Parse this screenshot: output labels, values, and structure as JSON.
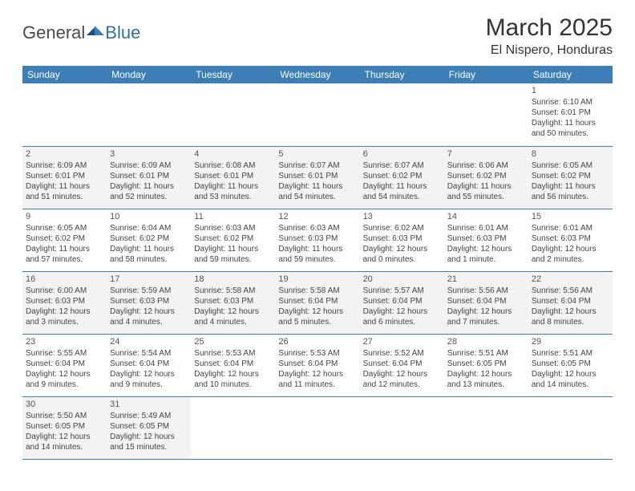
{
  "brand": {
    "part1": "General",
    "part2": "Blue"
  },
  "title": "March 2025",
  "location": "El Nispero, Honduras",
  "header_bg": "#3b7fb6",
  "days": [
    "Sunday",
    "Monday",
    "Tuesday",
    "Wednesday",
    "Thursday",
    "Friday",
    "Saturday"
  ],
  "weeks": [
    [
      null,
      null,
      null,
      null,
      null,
      null,
      {
        "n": "1",
        "sr": "Sunrise: 6:10 AM",
        "ss": "Sunset: 6:01 PM",
        "dl": "Daylight: 11 hours and 50 minutes."
      }
    ],
    [
      {
        "n": "2",
        "sr": "Sunrise: 6:09 AM",
        "ss": "Sunset: 6:01 PM",
        "dl": "Daylight: 11 hours and 51 minutes."
      },
      {
        "n": "3",
        "sr": "Sunrise: 6:09 AM",
        "ss": "Sunset: 6:01 PM",
        "dl": "Daylight: 11 hours and 52 minutes."
      },
      {
        "n": "4",
        "sr": "Sunrise: 6:08 AM",
        "ss": "Sunset: 6:01 PM",
        "dl": "Daylight: 11 hours and 53 minutes."
      },
      {
        "n": "5",
        "sr": "Sunrise: 6:07 AM",
        "ss": "Sunset: 6:01 PM",
        "dl": "Daylight: 11 hours and 54 minutes."
      },
      {
        "n": "6",
        "sr": "Sunrise: 6:07 AM",
        "ss": "Sunset: 6:02 PM",
        "dl": "Daylight: 11 hours and 54 minutes."
      },
      {
        "n": "7",
        "sr": "Sunrise: 6:06 AM",
        "ss": "Sunset: 6:02 PM",
        "dl": "Daylight: 11 hours and 55 minutes."
      },
      {
        "n": "8",
        "sr": "Sunrise: 6:05 AM",
        "ss": "Sunset: 6:02 PM",
        "dl": "Daylight: 11 hours and 56 minutes."
      }
    ],
    [
      {
        "n": "9",
        "sr": "Sunrise: 6:05 AM",
        "ss": "Sunset: 6:02 PM",
        "dl": "Daylight: 11 hours and 57 minutes."
      },
      {
        "n": "10",
        "sr": "Sunrise: 6:04 AM",
        "ss": "Sunset: 6:02 PM",
        "dl": "Daylight: 11 hours and 58 minutes."
      },
      {
        "n": "11",
        "sr": "Sunrise: 6:03 AM",
        "ss": "Sunset: 6:02 PM",
        "dl": "Daylight: 11 hours and 59 minutes."
      },
      {
        "n": "12",
        "sr": "Sunrise: 6:03 AM",
        "ss": "Sunset: 6:03 PM",
        "dl": "Daylight: 11 hours and 59 minutes."
      },
      {
        "n": "13",
        "sr": "Sunrise: 6:02 AM",
        "ss": "Sunset: 6:03 PM",
        "dl": "Daylight: 12 hours and 0 minutes."
      },
      {
        "n": "14",
        "sr": "Sunrise: 6:01 AM",
        "ss": "Sunset: 6:03 PM",
        "dl": "Daylight: 12 hours and 1 minute."
      },
      {
        "n": "15",
        "sr": "Sunrise: 6:01 AM",
        "ss": "Sunset: 6:03 PM",
        "dl": "Daylight: 12 hours and 2 minutes."
      }
    ],
    [
      {
        "n": "16",
        "sr": "Sunrise: 6:00 AM",
        "ss": "Sunset: 6:03 PM",
        "dl": "Daylight: 12 hours and 3 minutes."
      },
      {
        "n": "17",
        "sr": "Sunrise: 5:59 AM",
        "ss": "Sunset: 6:03 PM",
        "dl": "Daylight: 12 hours and 4 minutes."
      },
      {
        "n": "18",
        "sr": "Sunrise: 5:58 AM",
        "ss": "Sunset: 6:03 PM",
        "dl": "Daylight: 12 hours and 4 minutes."
      },
      {
        "n": "19",
        "sr": "Sunrise: 5:58 AM",
        "ss": "Sunset: 6:04 PM",
        "dl": "Daylight: 12 hours and 5 minutes."
      },
      {
        "n": "20",
        "sr": "Sunrise: 5:57 AM",
        "ss": "Sunset: 6:04 PM",
        "dl": "Daylight: 12 hours and 6 minutes."
      },
      {
        "n": "21",
        "sr": "Sunrise: 5:56 AM",
        "ss": "Sunset: 6:04 PM",
        "dl": "Daylight: 12 hours and 7 minutes."
      },
      {
        "n": "22",
        "sr": "Sunrise: 5:56 AM",
        "ss": "Sunset: 6:04 PM",
        "dl": "Daylight: 12 hours and 8 minutes."
      }
    ],
    [
      {
        "n": "23",
        "sr": "Sunrise: 5:55 AM",
        "ss": "Sunset: 6:04 PM",
        "dl": "Daylight: 12 hours and 9 minutes."
      },
      {
        "n": "24",
        "sr": "Sunrise: 5:54 AM",
        "ss": "Sunset: 6:04 PM",
        "dl": "Daylight: 12 hours and 9 minutes."
      },
      {
        "n": "25",
        "sr": "Sunrise: 5:53 AM",
        "ss": "Sunset: 6:04 PM",
        "dl": "Daylight: 12 hours and 10 minutes."
      },
      {
        "n": "26",
        "sr": "Sunrise: 5:53 AM",
        "ss": "Sunset: 6:04 PM",
        "dl": "Daylight: 12 hours and 11 minutes."
      },
      {
        "n": "27",
        "sr": "Sunrise: 5:52 AM",
        "ss": "Sunset: 6:04 PM",
        "dl": "Daylight: 12 hours and 12 minutes."
      },
      {
        "n": "28",
        "sr": "Sunrise: 5:51 AM",
        "ss": "Sunset: 6:05 PM",
        "dl": "Daylight: 12 hours and 13 minutes."
      },
      {
        "n": "29",
        "sr": "Sunrise: 5:51 AM",
        "ss": "Sunset: 6:05 PM",
        "dl": "Daylight: 12 hours and 14 minutes."
      }
    ],
    [
      {
        "n": "30",
        "sr": "Sunrise: 5:50 AM",
        "ss": "Sunset: 6:05 PM",
        "dl": "Daylight: 12 hours and 14 minutes."
      },
      {
        "n": "31",
        "sr": "Sunrise: 5:49 AM",
        "ss": "Sunset: 6:05 PM",
        "dl": "Daylight: 12 hours and 15 minutes."
      },
      null,
      null,
      null,
      null,
      null
    ]
  ]
}
